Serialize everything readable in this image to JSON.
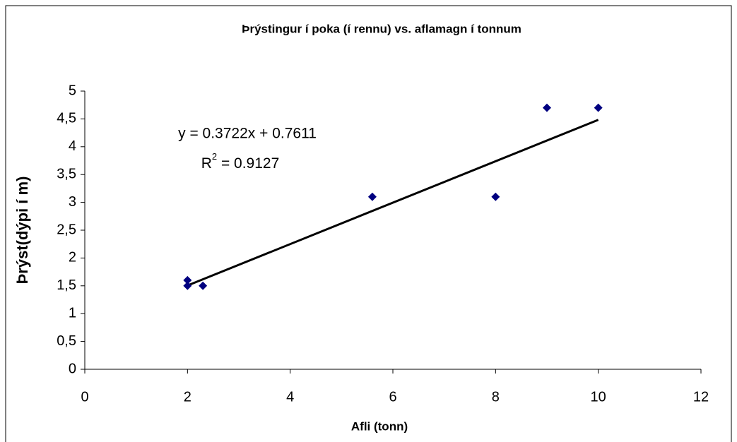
{
  "chart_data": {
    "type": "scatter",
    "title": "Þrýstingur í poka (í rennu) vs. aflamagn í tonnum",
    "x_label": "Afli (tonn)",
    "y_label": "Þrýst(dýpi í m)",
    "series": [
      {
        "name": "Þrýstingur",
        "color": "#000080",
        "x": [
          2,
          2,
          2.3,
          5.6,
          8,
          9,
          10
        ],
        "values": [
          1.6,
          1.5,
          1.5,
          3.1,
          3.1,
          4.7,
          4.7
        ]
      }
    ],
    "trendline": {
      "slope": 0.3722,
      "intercept": 0.7611,
      "x": [
        2,
        10
      ],
      "color": "#000000",
      "equation": "y = 0.3722x + 0.7611",
      "r2": {
        "base": "R",
        "sup": "2",
        "rest": " = 0.9127"
      }
    },
    "xlim": [
      0,
      12
    ],
    "xticks": [
      0,
      2,
      4,
      6,
      8,
      10,
      12
    ],
    "ylim": [
      0,
      5
    ],
    "yticks": [
      0,
      {
        "value": 0.5,
        "label": "0,5"
      },
      1,
      {
        "value": 1.5,
        "label": "1,5"
      },
      2,
      {
        "value": 2.5,
        "label": "2,5"
      },
      3,
      {
        "value": 3.5,
        "label": "3,5"
      },
      4,
      {
        "value": 4.5,
        "label": "4,5"
      },
      5
    ],
    "grid": false
  }
}
